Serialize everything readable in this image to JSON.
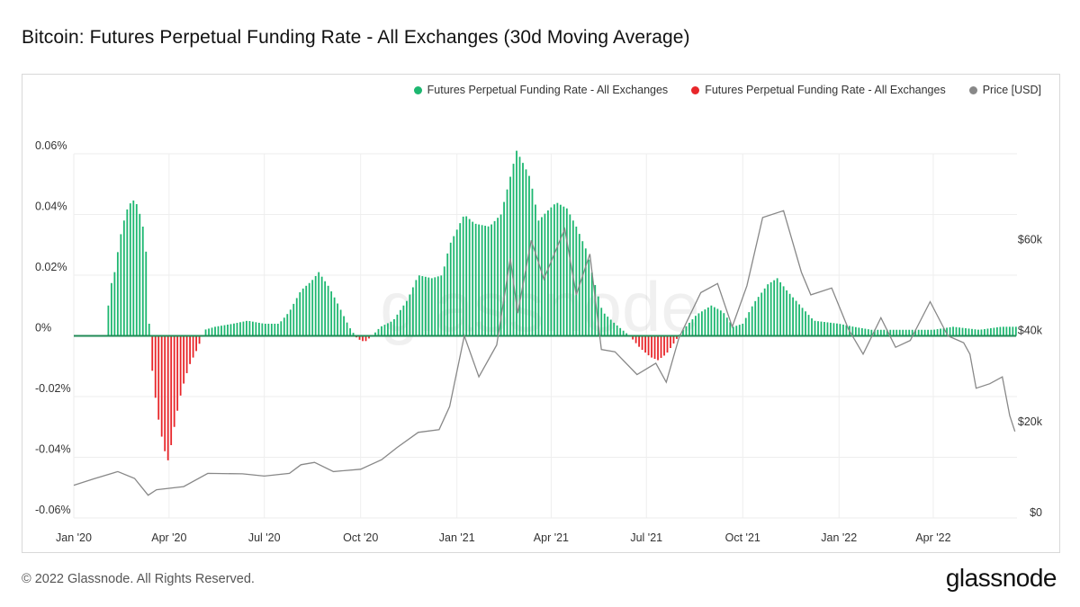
{
  "title": "Bitcoin: Futures Perpetual Funding Rate - All Exchanges (30d Moving Average)",
  "footer": {
    "copyright": "© 2022 Glassnode. All Rights Reserved.",
    "logo": "glassnode"
  },
  "watermark": "glassnode",
  "colors": {
    "positive": "#1db770",
    "negative": "#e8262a",
    "price": "#888888",
    "zero_line": "#1f8a55",
    "grid": "#eeeeee"
  },
  "chart_data": {
    "type": "bar",
    "title": "Bitcoin: Futures Perpetual Funding Rate - All Exchanges (30d Moving Average)",
    "legend": [
      {
        "label": "Futures Perpetual Funding Rate - All Exchanges",
        "color": "#1db770"
      },
      {
        "label": "Futures Perpetual Funding Rate - All Exchanges",
        "color": "#e8262a"
      },
      {
        "label": "Price [USD]",
        "color": "#888888"
      }
    ],
    "legend_position": "top-right",
    "x_range": [
      "2020-01-01",
      "2022-06-20"
    ],
    "x_ticks": [
      {
        "label": "Jan '20",
        "date": "2020-01-01"
      },
      {
        "label": "Apr '20",
        "date": "2020-04-01"
      },
      {
        "label": "Jul '20",
        "date": "2020-07-01"
      },
      {
        "label": "Oct '20",
        "date": "2020-10-01"
      },
      {
        "label": "Jan '21",
        "date": "2021-01-01"
      },
      {
        "label": "Apr '21",
        "date": "2021-04-01"
      },
      {
        "label": "Jul '21",
        "date": "2021-07-01"
      },
      {
        "label": "Oct '21",
        "date": "2021-10-01"
      },
      {
        "label": "Jan '22",
        "date": "2022-01-01"
      },
      {
        "label": "Apr '22",
        "date": "2022-04-01"
      }
    ],
    "y_left": {
      "ylim": [
        -0.06,
        0.06
      ],
      "ticks": [
        0.06,
        0.04,
        0.02,
        0,
        -0.02,
        -0.04,
        -0.06
      ],
      "tick_labels": [
        "0.06%",
        "0.04%",
        "0.02%",
        "0%",
        "-0.02%",
        "-0.04%",
        "-0.06%"
      ]
    },
    "y_right": {
      "ylim": [
        0,
        80000
      ],
      "ticks": [
        60000,
        40000,
        20000,
        0
      ],
      "tick_labels": [
        "$60k",
        "$40k",
        "$20k",
        "$0"
      ]
    },
    "grid": true,
    "series": [
      {
        "kind": "bar",
        "axis": "left",
        "unit": "%",
        "color_positive": "#1db770",
        "color_negative": "#e8262a",
        "points": [
          [
            "2020-01-01",
            0
          ],
          [
            "2020-02-01",
            0
          ],
          [
            "2020-02-04",
            0.015
          ],
          [
            "2020-02-09",
            0.021
          ],
          [
            "2020-02-14",
            0.032
          ],
          [
            "2020-02-20",
            0.041
          ],
          [
            "2020-02-26",
            0.045
          ],
          [
            "2020-03-02",
            0.043
          ],
          [
            "2020-03-07",
            0.036
          ],
          [
            "2020-03-11",
            0.025
          ],
          [
            "2020-03-13",
            0.004
          ],
          [
            "2020-03-14",
            -0.005
          ],
          [
            "2020-03-18",
            -0.018
          ],
          [
            "2020-03-23",
            -0.03
          ],
          [
            "2020-03-28",
            -0.038
          ],
          [
            "2020-04-01",
            -0.042
          ],
          [
            "2020-04-03",
            -0.036
          ],
          [
            "2020-04-07",
            -0.028
          ],
          [
            "2020-04-13",
            -0.018
          ],
          [
            "2020-04-20",
            -0.01
          ],
          [
            "2020-04-27",
            -0.005
          ],
          [
            "2020-05-02",
            -0.001
          ],
          [
            "2020-05-05",
            0.002
          ],
          [
            "2020-05-15",
            0.003
          ],
          [
            "2020-06-01",
            0.004
          ],
          [
            "2020-06-15",
            0.005
          ],
          [
            "2020-07-01",
            0.004
          ],
          [
            "2020-07-15",
            0.004
          ],
          [
            "2020-07-25",
            0.008
          ],
          [
            "2020-08-05",
            0.015
          ],
          [
            "2020-08-15",
            0.018
          ],
          [
            "2020-08-22",
            0.021
          ],
          [
            "2020-09-01",
            0.016
          ],
          [
            "2020-09-10",
            0.01
          ],
          [
            "2020-09-20",
            0.003
          ],
          [
            "2020-09-28",
            -0.001
          ],
          [
            "2020-10-05",
            -0.002
          ],
          [
            "2020-10-12",
            0.0
          ],
          [
            "2020-10-20",
            0.003
          ],
          [
            "2020-11-01",
            0.005
          ],
          [
            "2020-11-15",
            0.012
          ],
          [
            "2020-11-25",
            0.02
          ],
          [
            "2020-12-08",
            0.019
          ],
          [
            "2020-12-18",
            0.02
          ],
          [
            "2020-12-25",
            0.03
          ],
          [
            "2021-01-08",
            0.04
          ],
          [
            "2021-01-18",
            0.037
          ],
          [
            "2021-02-01",
            0.036
          ],
          [
            "2021-02-12",
            0.04
          ],
          [
            "2021-02-20",
            0.051
          ],
          [
            "2021-02-27",
            0.061
          ],
          [
            "2021-03-05",
            0.057
          ],
          [
            "2021-03-12",
            0.052
          ],
          [
            "2021-03-20",
            0.038
          ],
          [
            "2021-03-28",
            0.041
          ],
          [
            "2021-04-06",
            0.044
          ],
          [
            "2021-04-16",
            0.042
          ],
          [
            "2021-04-25",
            0.036
          ],
          [
            "2021-05-05",
            0.028
          ],
          [
            "2021-05-12",
            0.018
          ],
          [
            "2021-05-20",
            0.008
          ],
          [
            "2021-06-01",
            0.004
          ],
          [
            "2021-06-15",
            0.0
          ],
          [
            "2021-06-25",
            -0.004
          ],
          [
            "2021-07-05",
            -0.007
          ],
          [
            "2021-07-12",
            -0.008
          ],
          [
            "2021-07-20",
            -0.006
          ],
          [
            "2021-07-28",
            -0.002
          ],
          [
            "2021-08-05",
            0.002
          ],
          [
            "2021-08-18",
            0.007
          ],
          [
            "2021-09-01",
            0.01
          ],
          [
            "2021-09-12",
            0.008
          ],
          [
            "2021-09-22",
            0.003
          ],
          [
            "2021-10-01",
            0.004
          ],
          [
            "2021-10-12",
            0.011
          ],
          [
            "2021-10-25",
            0.017
          ],
          [
            "2021-11-03",
            0.019
          ],
          [
            "2021-11-12",
            0.015
          ],
          [
            "2021-11-25",
            0.01
          ],
          [
            "2021-12-08",
            0.005
          ],
          [
            "2022-01-01",
            0.004
          ],
          [
            "2022-01-15",
            0.003
          ],
          [
            "2022-02-01",
            0.002
          ],
          [
            "2022-03-01",
            0.002
          ],
          [
            "2022-04-01",
            0.002
          ],
          [
            "2022-04-20",
            0.003
          ],
          [
            "2022-05-15",
            0.002
          ],
          [
            "2022-06-05",
            0.003
          ],
          [
            "2022-06-19",
            0.003
          ]
        ]
      },
      {
        "kind": "line",
        "name": "Price [USD]",
        "axis": "right",
        "color": "#888888",
        "points": [
          [
            "2020-01-01",
            7200
          ],
          [
            "2020-01-20",
            8600
          ],
          [
            "2020-02-12",
            10200
          ],
          [
            "2020-02-28",
            8700
          ],
          [
            "2020-03-12",
            5000
          ],
          [
            "2020-03-20",
            6200
          ],
          [
            "2020-04-15",
            6900
          ],
          [
            "2020-05-08",
            9800
          ],
          [
            "2020-06-10",
            9700
          ],
          [
            "2020-07-01",
            9200
          ],
          [
            "2020-07-25",
            9800
          ],
          [
            "2020-08-05",
            11700
          ],
          [
            "2020-08-18",
            12200
          ],
          [
            "2020-09-05",
            10200
          ],
          [
            "2020-10-01",
            10700
          ],
          [
            "2020-10-21",
            12800
          ],
          [
            "2020-11-05",
            15500
          ],
          [
            "2020-11-25",
            18800
          ],
          [
            "2020-12-15",
            19400
          ],
          [
            "2020-12-25",
            24500
          ],
          [
            "2021-01-08",
            40000
          ],
          [
            "2021-01-22",
            31000
          ],
          [
            "2021-02-08",
            38000
          ],
          [
            "2021-02-21",
            57000
          ],
          [
            "2021-02-28",
            45000
          ],
          [
            "2021-03-13",
            61000
          ],
          [
            "2021-03-25",
            52500
          ],
          [
            "2021-04-14",
            63500
          ],
          [
            "2021-04-25",
            49000
          ],
          [
            "2021-05-08",
            58000
          ],
          [
            "2021-05-19",
            37000
          ],
          [
            "2021-06-01",
            36500
          ],
          [
            "2021-06-22",
            31500
          ],
          [
            "2021-07-10",
            34000
          ],
          [
            "2021-07-20",
            29800
          ],
          [
            "2021-08-01",
            39500
          ],
          [
            "2021-08-22",
            49500
          ],
          [
            "2021-09-07",
            51500
          ],
          [
            "2021-09-21",
            42000
          ],
          [
            "2021-10-05",
            51000
          ],
          [
            "2021-10-20",
            66000
          ],
          [
            "2021-11-09",
            67500
          ],
          [
            "2021-11-26",
            54000
          ],
          [
            "2021-12-05",
            49000
          ],
          [
            "2021-12-25",
            50500
          ],
          [
            "2022-01-10",
            41500
          ],
          [
            "2022-01-24",
            36000
          ],
          [
            "2022-02-10",
            44000
          ],
          [
            "2022-02-24",
            37500
          ],
          [
            "2022-03-10",
            39000
          ],
          [
            "2022-03-29",
            47500
          ],
          [
            "2022-04-15",
            40000
          ],
          [
            "2022-04-30",
            38500
          ],
          [
            "2022-05-06",
            36000
          ],
          [
            "2022-05-12",
            28500
          ],
          [
            "2022-05-25",
            29500
          ],
          [
            "2022-06-06",
            31000
          ],
          [
            "2022-06-13",
            22500
          ],
          [
            "2022-06-18",
            19000
          ]
        ]
      }
    ]
  }
}
